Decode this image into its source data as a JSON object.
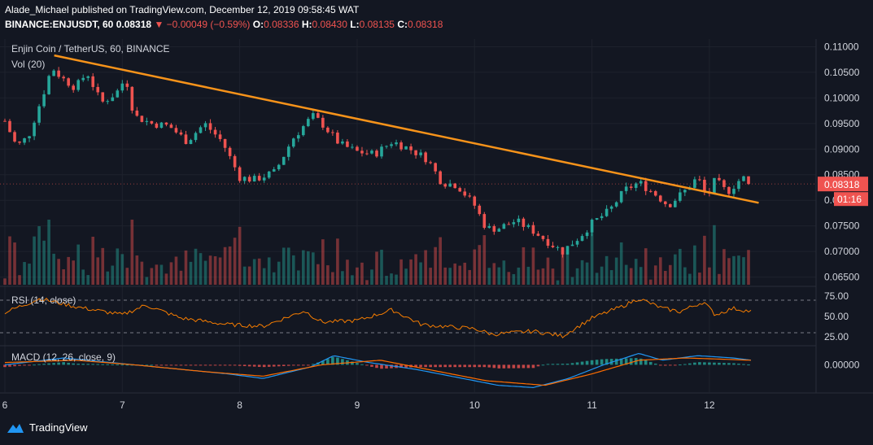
{
  "header": {
    "line1": "Alade_Michael published on TradingView.com, December 12, 2019 09:58:45 WAT",
    "symbol": "BINANCE:ENJUSDT, 60",
    "last": "0.08318",
    "change": "−0.00049 (−0.59%)",
    "o_label": "O:",
    "o": "0.08336",
    "h_label": "H:",
    "h": "0.08430",
    "l_label": "L:",
    "l": "0.08135",
    "c_label": "C:",
    "c": "0.08318"
  },
  "chart_title": "Enjin Coin / TetherUS, 60, BINANCE",
  "volume_label": "Vol (20)",
  "rsi_label": "RSI (14, close)",
  "macd_label": "MACD (12, 26, close, 9)",
  "price_tag": "0.08318",
  "countdown_tag": "01:16",
  "footer": {
    "brand": "TradingView",
    "logo_icon": "tradingview-logo-icon"
  },
  "colors": {
    "background": "#131722",
    "up": "#26a69a",
    "down": "#ef5350",
    "trendline": "#f7931a",
    "rsi": "#f57c00",
    "macd": "#2196f3",
    "signal": "#ff6d00"
  },
  "chart_data": [
    {
      "type": "candlestick",
      "title": "Enjin Coin / TetherUS, 60, BINANCE",
      "y_ticks": [
        "0.11000",
        "0.10500",
        "0.10000",
        "0.09500",
        "0.09000",
        "0.08500",
        "0.08000",
        "0.07500",
        "0.07000",
        "0.06500"
      ],
      "x_ticks": [
        "6",
        "7",
        "8",
        "9",
        "10",
        "11",
        "12"
      ],
      "ylim": [
        0.0635,
        0.1115
      ],
      "x_day_range": [
        6,
        12.95
      ],
      "close_path": [
        [
          6.0,
          0.0955
        ],
        [
          6.1,
          0.0905
        ],
        [
          6.2,
          0.0925
        ],
        [
          6.33,
          0.101
        ],
        [
          6.4,
          0.106
        ],
        [
          6.48,
          0.104
        ],
        [
          6.6,
          0.102
        ],
        [
          6.7,
          0.105
        ],
        [
          6.82,
          0.099
        ],
        [
          6.95,
          0.101
        ],
        [
          7.03,
          0.104
        ],
        [
          7.1,
          0.0965
        ],
        [
          7.25,
          0.095
        ],
        [
          7.4,
          0.0945
        ],
        [
          7.55,
          0.0915
        ],
        [
          7.7,
          0.095
        ],
        [
          7.85,
          0.0915
        ],
        [
          8.0,
          0.0845
        ],
        [
          8.12,
          0.084
        ],
        [
          8.3,
          0.0855
        ],
        [
          8.45,
          0.092
        ],
        [
          8.62,
          0.0965
        ],
        [
          8.7,
          0.095
        ],
        [
          8.85,
          0.091
        ],
        [
          9.0,
          0.0895
        ],
        [
          9.15,
          0.089
        ],
        [
          9.3,
          0.0915
        ],
        [
          9.45,
          0.09
        ],
        [
          9.6,
          0.088
        ],
        [
          9.72,
          0.0835
        ],
        [
          9.85,
          0.083
        ],
        [
          10.0,
          0.079
        ],
        [
          10.1,
          0.0745
        ],
        [
          10.2,
          0.0745
        ],
        [
          10.35,
          0.076
        ],
        [
          10.5,
          0.074
        ],
        [
          10.65,
          0.0715
        ],
        [
          10.75,
          0.07
        ],
        [
          10.9,
          0.073
        ],
        [
          11.0,
          0.0755
        ],
        [
          11.15,
          0.078
        ],
        [
          11.28,
          0.082
        ],
        [
          11.4,
          0.0835
        ],
        [
          11.55,
          0.081
        ],
        [
          11.65,
          0.079
        ],
        [
          11.8,
          0.082
        ],
        [
          11.9,
          0.0845
        ],
        [
          11.98,
          0.0805
        ],
        [
          12.05,
          0.084
        ],
        [
          12.15,
          0.0815
        ],
        [
          12.28,
          0.0845
        ],
        [
          12.36,
          0.0832
        ]
      ],
      "last_price": 0.08318,
      "trendline": [
        [
          6.42,
          0.1083
        ],
        [
          12.42,
          0.0795
        ]
      ]
    },
    {
      "type": "bar",
      "title": "Vol (20)",
      "description": "hourly volume bars, colored by candle direction"
    },
    {
      "type": "line",
      "title": "RSI (14, close)",
      "y_ticks": [
        "75.00",
        "50.00",
        "25.00"
      ],
      "ylim": [
        15,
        85
      ],
      "bands": [
        70,
        30
      ],
      "series": [
        {
          "name": "RSI",
          "points": [
            [
              6.0,
              55
            ],
            [
              6.3,
              72
            ],
            [
              6.6,
              62
            ],
            [
              7.0,
              52
            ],
            [
              7.2,
              64
            ],
            [
              7.5,
              48
            ],
            [
              7.9,
              40
            ],
            [
              8.2,
              38
            ],
            [
              8.55,
              57
            ],
            [
              8.7,
              43
            ],
            [
              9.0,
              45
            ],
            [
              9.3,
              58
            ],
            [
              9.55,
              40
            ],
            [
              9.8,
              37
            ],
            [
              10.0,
              35
            ],
            [
              10.15,
              28
            ],
            [
              10.5,
              32
            ],
            [
              10.75,
              26
            ],
            [
              11.0,
              48
            ],
            [
              11.25,
              62
            ],
            [
              11.4,
              72
            ],
            [
              11.6,
              60
            ],
            [
              11.75,
              56
            ],
            [
              11.95,
              68
            ],
            [
              12.05,
              52
            ],
            [
              12.2,
              60
            ],
            [
              12.36,
              56
            ]
          ]
        }
      ]
    },
    {
      "type": "line",
      "title": "MACD (12, 26, close, 9)",
      "y_ticks": [
        "0.00000"
      ],
      "ylim": [
        -0.0012,
        0.0008
      ],
      "series": [
        {
          "name": "MACD",
          "points": [
            [
              6.0,
              0.0
            ],
            [
              6.5,
              0.0003
            ],
            [
              6.9,
              0.0001
            ],
            [
              7.3,
              -0.0001
            ],
            [
              7.9,
              -0.0004
            ],
            [
              8.2,
              -0.0006
            ],
            [
              8.6,
              -0.0001
            ],
            [
              8.8,
              0.0004
            ],
            [
              9.1,
              0.0001
            ],
            [
              9.5,
              -0.0002
            ],
            [
              9.9,
              -0.0006
            ],
            [
              10.2,
              -0.0009
            ],
            [
              10.5,
              -0.001
            ],
            [
              10.8,
              -0.0006
            ],
            [
              11.1,
              0.0
            ],
            [
              11.4,
              0.0005
            ],
            [
              11.6,
              0.0002
            ],
            [
              11.9,
              0.0004
            ],
            [
              12.2,
              0.0003
            ],
            [
              12.36,
              0.0002
            ]
          ]
        },
        {
          "name": "Signal",
          "points": [
            [
              6.0,
              0.0001
            ],
            [
              6.6,
              0.0002
            ],
            [
              7.1,
              0.0
            ],
            [
              7.7,
              -0.0003
            ],
            [
              8.2,
              -0.0005
            ],
            [
              8.7,
              0.0
            ],
            [
              9.2,
              0.0002
            ],
            [
              9.6,
              -0.0002
            ],
            [
              10.1,
              -0.0007
            ],
            [
              10.6,
              -0.0009
            ],
            [
              11.0,
              -0.0004
            ],
            [
              11.4,
              0.0002
            ],
            [
              11.8,
              0.0003
            ],
            [
              12.36,
              0.0002
            ]
          ]
        }
      ]
    }
  ]
}
